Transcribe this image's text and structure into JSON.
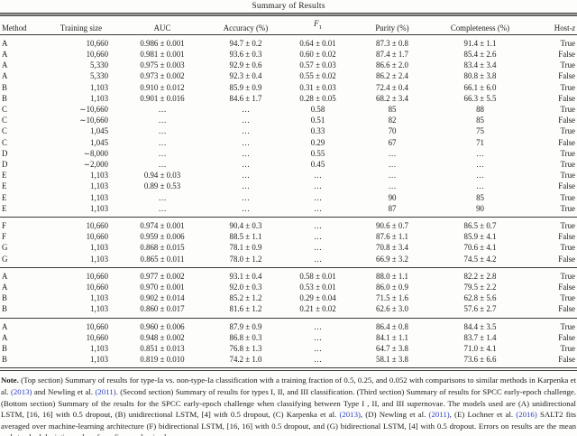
{
  "title": "Summary of Results",
  "colors": {
    "link": "#2d3fbe",
    "rule": "#3a3a3a",
    "band": "#9c9c9c",
    "text": "#1c1c1c"
  },
  "table": {
    "column_keys": [
      "method",
      "training-size",
      "auc",
      "accuracy",
      "f1",
      "purity",
      "completeness",
      "host-z"
    ],
    "headers": {
      "method": "Method",
      "training_size": "Training size",
      "auc": "AUC",
      "accuracy": "Accuracy (%)",
      "f1_base": "F",
      "f1_sub": "1",
      "purity": "Purity (%)",
      "completeness": "Completeness (%)",
      "host_pre": "Host-",
      "host_z": "z"
    },
    "sections": [
      {
        "name": "top",
        "rows": [
          [
            "A",
            "10,660",
            "0.986 ± 0.001",
            "94.7 ± 0.2",
            "0.64 ± 0.01",
            "87.3 ± 0.8",
            "91.4 ± 1.1",
            "True"
          ],
          [
            "A",
            "10,660",
            "0.981 ± 0.001",
            "93.6 ± 0.3",
            "0.60 ± 0.02",
            "87.4 ± 1.7",
            "85.4 ± 2.6",
            "False"
          ],
          [
            "A",
            "5,330",
            "0.975 ± 0.003",
            "92.9 ± 0.6",
            "0.57 ± 0.03",
            "86.6 ± 2.0",
            "83.4 ± 3.4",
            "True"
          ],
          [
            "A",
            "5,330",
            "0.973 ± 0.002",
            "92.3 ± 0.4",
            "0.55 ± 0.02",
            "86.2 ± 2.4",
            "80.8 ± 3.8",
            "False"
          ],
          [
            "B",
            "1,103",
            "0.910 ± 0.012",
            "85.9 ± 0.9",
            "0.31 ± 0.03",
            "72.4 ± 0.4",
            "66.1 ± 6.0",
            "True"
          ],
          [
            "B",
            "1,103",
            "0.901 ± 0.016",
            "84.6 ± 1.7",
            "0.28 ± 0.05",
            "68.2 ± 3.4",
            "66.3 ± 5.5",
            "False"
          ],
          [
            "C",
            "∼10,660",
            "…",
            "…",
            "0.58",
            "85",
            "88",
            "True"
          ],
          [
            "C",
            "∼10,660",
            "…",
            "…",
            "0.51",
            "82",
            "85",
            "False"
          ],
          [
            "C",
            "1,045",
            "…",
            "…",
            "0.33",
            "70",
            "75",
            "True"
          ],
          [
            "C",
            "1,045",
            "…",
            "…",
            "0.29",
            "67",
            "71",
            "False"
          ],
          [
            "D",
            "∼8,000",
            "…",
            "…",
            "0.55",
            "…",
            "…",
            "True"
          ],
          [
            "D",
            "∼2,000",
            "…",
            "…",
            "0.45",
            "…",
            "…",
            "True"
          ],
          [
            "E",
            "1,103",
            "0.94 ± 0.03",
            "…",
            "…",
            "…",
            "…",
            "True"
          ],
          [
            "E",
            "1,103",
            "0.89 ± 0.53",
            "…",
            "…",
            "…",
            "…",
            "False"
          ],
          [
            "E",
            "1,103",
            "…",
            "…",
            "…",
            "90",
            "85",
            "True"
          ],
          [
            "E",
            "1,103",
            "…",
            "…",
            "…",
            "87",
            "90",
            "True"
          ]
        ]
      },
      {
        "name": "second",
        "rows": [
          [
            "F",
            "10,660",
            "0.974 ± 0.001",
            "90.4 ± 0.3",
            "…",
            "90.6 ± 0.7",
            "86.5 ± 0.7",
            "True"
          ],
          [
            "F",
            "10,660",
            "0.959 ± 0.006",
            "88.5 ± 1.1",
            "…",
            "87.6 ± 1.1",
            "85.9 ± 4.1",
            "False"
          ],
          [
            "G",
            "1,103",
            "0.868 ± 0.015",
            "78.1 ± 0.9",
            "…",
            "70.8 ± 3.4",
            "70.6 ± 4.1",
            "True"
          ],
          [
            "G",
            "1,103",
            "0.865 ± 0.011",
            "78.0 ± 1.2",
            "…",
            "66.9 ± 3.2",
            "74.5 ± 4.2",
            "False"
          ]
        ]
      },
      {
        "name": "third",
        "rows": [
          [
            "A",
            "10,660",
            "0.977 ± 0.002",
            "93.1 ± 0.4",
            "0.58 ± 0.01",
            "88.0 ± 1.1",
            "82.2 ± 2.8",
            "True"
          ],
          [
            "A",
            "10,660",
            "0.970 ± 0.001",
            "92.0 ± 0.3",
            "0.53 ± 0.01",
            "86.0 ± 0.9",
            "79.5 ± 2.2",
            "False"
          ],
          [
            "B",
            "1,103",
            "0.902 ± 0.014",
            "85.2 ± 1.2",
            "0.29 ± 0.04",
            "71.5 ± 1.6",
            "62.8 ± 5.6",
            "True"
          ],
          [
            "B",
            "1,103",
            "0.860 ± 0.017",
            "81.6 ± 1.2",
            "0.21 ± 0.02",
            "62.6 ± 3.0",
            "57.6 ± 2.7",
            "False"
          ]
        ]
      },
      {
        "name": "bottom",
        "rows": [
          [
            "A",
            "10,660",
            "0.960 ± 0.006",
            "87.9 ± 0.9",
            "…",
            "86.4 ± 0.8",
            "84.4 ± 3.5",
            "True"
          ],
          [
            "A",
            "10,660",
            "0.948 ± 0.002",
            "86.8 ± 0.3",
            "…",
            "84.1 ± 1.1",
            "83.7 ± 1.4",
            "False"
          ],
          [
            "B",
            "1,103",
            "0.851 ± 0.013",
            "76.8 ± 1.3",
            "…",
            "64.7 ± 3.8",
            "71.0 ± 4.1",
            "True"
          ],
          [
            "B",
            "1,103",
            "0.819 ± 0.010",
            "74.2 ± 1.0",
            "…",
            "58.1 ± 3.8",
            "73.6 ± 6.6",
            "False"
          ]
        ]
      }
    ]
  },
  "note": {
    "segments": [
      {
        "style": "bold",
        "text": "Note."
      },
      {
        "style": "plain",
        "text": " (Top section) Summary of results for type-Ia vs. non-type-Ia classification with a training fraction of 0.5, 0.25, and 0.052 with comparisons to similar methods in Karpenka et al. "
      },
      {
        "style": "link",
        "text": "(2013)"
      },
      {
        "style": "plain",
        "text": " and Newling et al. "
      },
      {
        "style": "link",
        "text": "(2011)"
      },
      {
        "style": "plain",
        "text": ". (Second section) Summary of results for types I, II, and III classification. (Third section) Summary of results for SPCC early-epoch challenge. (Bottom section) Summary of the results for the SPCC early-epoch challenge when classifying between Type I , II, and III supernovae. The models used are (A) unidirectional LSTM, [16, 16] with 0.5 dropout, (B) unidirectional LSTM, [4] with 0.5 dropout, (C) Karpenka et al. "
      },
      {
        "style": "link",
        "text": "(2013)"
      },
      {
        "style": "plain",
        "text": ", (D) Newling et al. "
      },
      {
        "style": "link",
        "text": "(2011)"
      },
      {
        "style": "plain",
        "text": ", (E) Lochner et al. "
      },
      {
        "style": "link",
        "text": "(2016)"
      },
      {
        "style": "plain",
        "text": " SALT2 fits averaged over machine-learning architecture (F) bidirectional LSTM, [16, 16] with 0.5 dropout, and (G) bidirectional LSTM, [4] with 0.5 dropout. Errors on results are the mean and standard deviation values from five randomized runs."
      }
    ]
  }
}
